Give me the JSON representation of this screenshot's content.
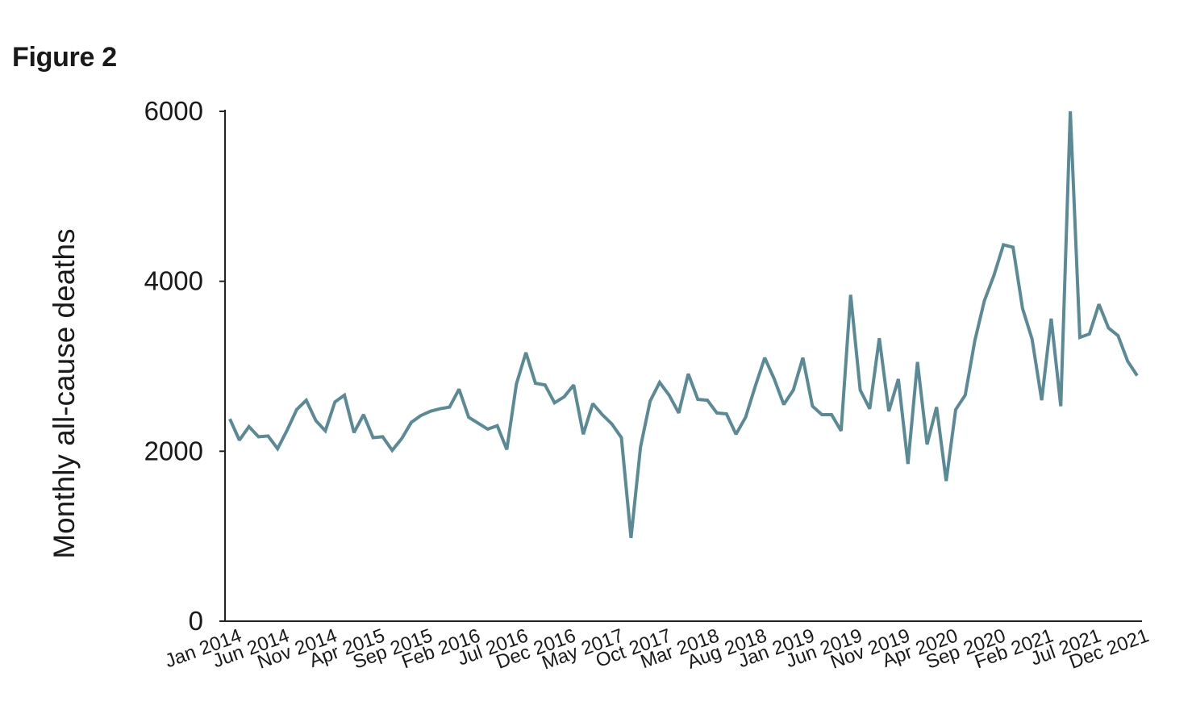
{
  "figure_label": "Figure 2",
  "colors": {
    "line": "#5a8a96",
    "axis": "#222222",
    "text": "#1a1a1a"
  },
  "chart_data": {
    "type": "line",
    "title": "",
    "xlabel": "",
    "ylabel": "Monthly all-cause deaths",
    "ylim": [
      0,
      6000
    ],
    "yticks": [
      0,
      2000,
      4000,
      6000
    ],
    "grid": false,
    "xtick_labels": [
      "Jan 2014",
      "Jun 2014",
      "Nov 2014",
      "Apr 2015",
      "Sep 2015",
      "Feb 2016",
      "Jul 2016",
      "Dec 2016",
      "May 2017",
      "Oct 2017",
      "Mar 2018",
      "Aug 2018",
      "Jan 2019",
      "Jun 2019",
      "Nov 2019",
      "Apr 2020",
      "Sep 2020",
      "Feb 2021",
      "Jul 2021",
      "Dec 2021"
    ],
    "x_start": "Jan 2014",
    "x_end": "Dec 2021",
    "series": [
      {
        "values": [
          2380,
          2130,
          2290,
          2170,
          2180,
          2030,
          2250,
          2490,
          2600,
          2360,
          2240,
          2580,
          2660,
          2220,
          2430,
          2160,
          2170,
          2010,
          2150,
          2340,
          2420,
          2470,
          2500,
          2520,
          2730,
          2400,
          2330,
          2260,
          2300,
          2020,
          2790,
          3160,
          2800,
          2780,
          2570,
          2640,
          2780,
          2200,
          2560,
          2430,
          2320,
          2160,
          980,
          2050,
          2590,
          2810,
          2660,
          2450,
          2910,
          2610,
          2600,
          2450,
          2440,
          2200,
          2400,
          2760,
          3100,
          2850,
          2550,
          2720,
          3100,
          2530,
          2430,
          2430,
          2240,
          3840,
          2720,
          2500,
          3330,
          2470,
          2850,
          1850,
          3050,
          2080,
          2520,
          1650,
          2490,
          2660,
          3300,
          3770,
          4070,
          4430,
          4400,
          3680,
          3320,
          2600,
          3560,
          2530,
          6000,
          3340,
          3380,
          3730,
          3450,
          3360,
          3060,
          2890
        ]
      }
    ]
  }
}
